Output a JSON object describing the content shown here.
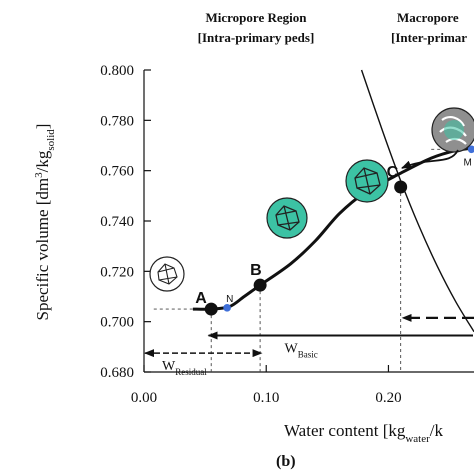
{
  "chart_data": {
    "type": "line",
    "panel_label": "(b)",
    "regions": [
      {
        "title": "Micropore Region",
        "subtitle": "[Intra-primary peds]"
      },
      {
        "title": "Macropore",
        "subtitle": "[Inter-primar"
      }
    ],
    "ylabel_main": "Specific volume [dm",
    "ylabel_sup": "3",
    "ylabel_mid": "/kg",
    "ylabel_sub": "solid",
    "ylabel_end": "]",
    "xlabel_main": "Water content [kg",
    "xlabel_sub": "water",
    "xlabel_end": "/k",
    "xlim": [
      0.0,
      0.27
    ],
    "ylim": [
      0.68,
      0.8
    ],
    "xticks": [
      "0.00",
      "0.10",
      "0.20"
    ],
    "xtick_values": [
      0.0,
      0.1,
      0.2
    ],
    "yticks": [
      "0.680",
      "0.700",
      "0.720",
      "0.740",
      "0.760",
      "0.780",
      "0.800"
    ],
    "ytick_values": [
      0.68,
      0.7,
      0.72,
      0.74,
      0.76,
      0.78,
      0.8
    ],
    "shrinkage_curve": {
      "x": [
        0.04,
        0.055,
        0.07,
        0.082,
        0.095,
        0.12,
        0.14,
        0.16,
        0.18,
        0.21,
        0.235,
        0.255,
        0.27
      ],
      "y": [
        0.705,
        0.705,
        0.706,
        0.71,
        0.7145,
        0.723,
        0.732,
        0.743,
        0.751,
        0.759,
        0.765,
        0.768,
        0.769
      ]
    },
    "saturation_line": {
      "x": [
        0.178,
        0.195,
        0.21,
        0.225,
        0.24,
        0.255,
        0.27
      ],
      "y": [
        0.8,
        0.776,
        0.756,
        0.738,
        0.722,
        0.708,
        0.696
      ]
    },
    "points": [
      {
        "label": "A",
        "x": 0.055,
        "y": 0.705
      },
      {
        "label": "B",
        "x": 0.095,
        "y": 0.7145
      },
      {
        "label": "C",
        "x": 0.21,
        "y": 0.7535
      }
    ],
    "minor_points": [
      {
        "label": "N",
        "x": 0.068,
        "y": 0.7055
      },
      {
        "label": "M",
        "x": 0.268,
        "y": 0.7685
      }
    ],
    "annotations": [
      {
        "label_main": "W",
        "label_sub": "Residual",
        "from": 0.0,
        "to": 0.097,
        "y": 0.6875
      },
      {
        "label_main": "W",
        "label_sub": "Basic",
        "from": 0.052,
        "to": 0.27,
        "y": 0.6945
      }
    ],
    "dashed_arrow": {
      "from": 0.27,
      "to": 0.21,
      "y": 0.7015
    }
  }
}
